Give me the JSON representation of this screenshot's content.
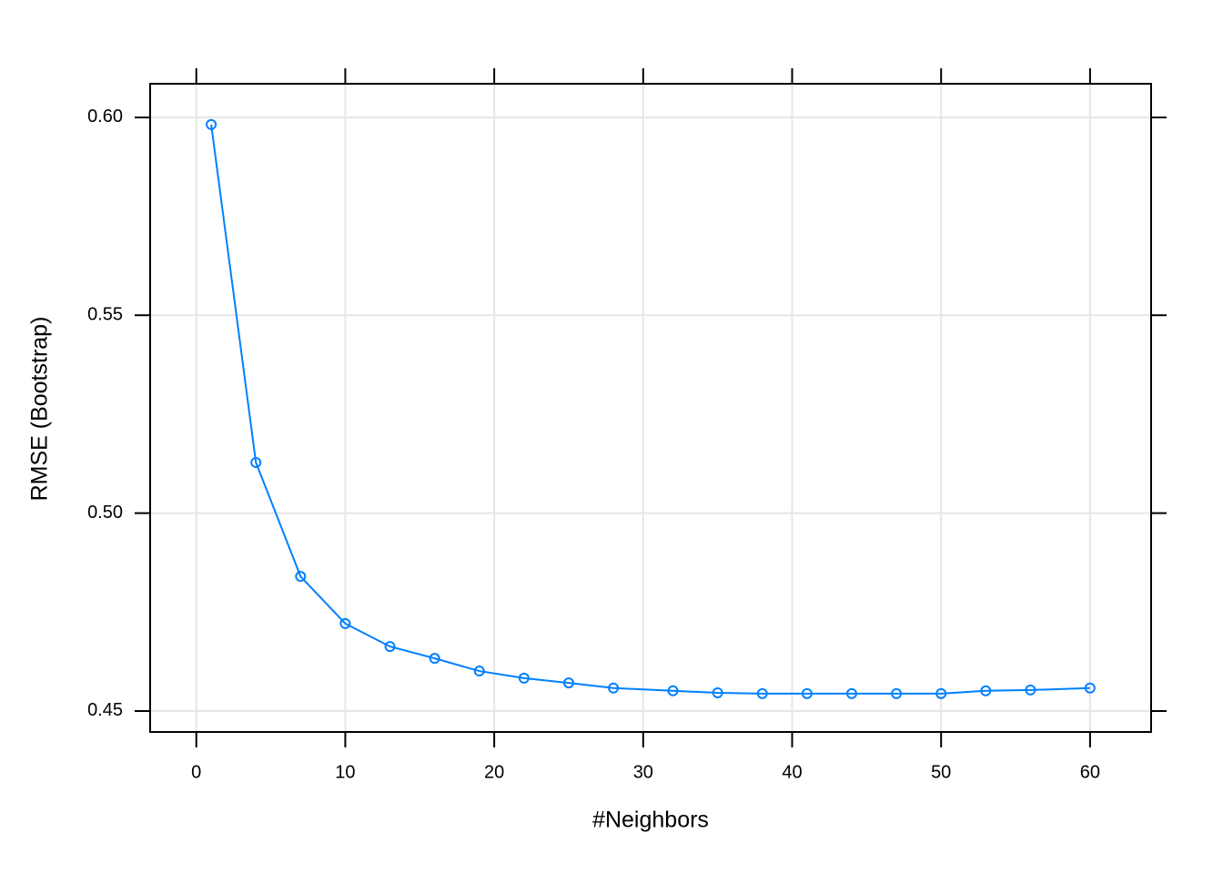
{
  "chart_data": {
    "type": "line",
    "xlabel": "#Neighbors",
    "ylabel": "RMSE (Bootstrap)",
    "x": [
      1,
      4,
      7,
      10,
      13,
      16,
      19,
      22,
      25,
      28,
      32,
      35,
      38,
      41,
      44,
      47,
      50,
      53,
      56,
      60
    ],
    "values": [
      0.5982,
      0.5128,
      0.484,
      0.4721,
      0.4663,
      0.4633,
      0.4601,
      0.4583,
      0.4571,
      0.4558,
      0.4551,
      0.4546,
      0.4544,
      0.4544,
      0.4544,
      0.4544,
      0.4544,
      0.4551,
      0.4553,
      0.4558
    ],
    "color": "#0080ff",
    "xlim": [
      -3.1,
      64.1
    ],
    "ylim": [
      0.4447,
      0.6085
    ],
    "xticks": [
      0,
      10,
      20,
      30,
      40,
      50,
      60
    ],
    "yticks": [
      0.45,
      {
        "value": 0.5,
        "label": "0.50"
      },
      0.55,
      {
        "value": 0.6,
        "label": "0.60"
      }
    ],
    "grid": true
  }
}
